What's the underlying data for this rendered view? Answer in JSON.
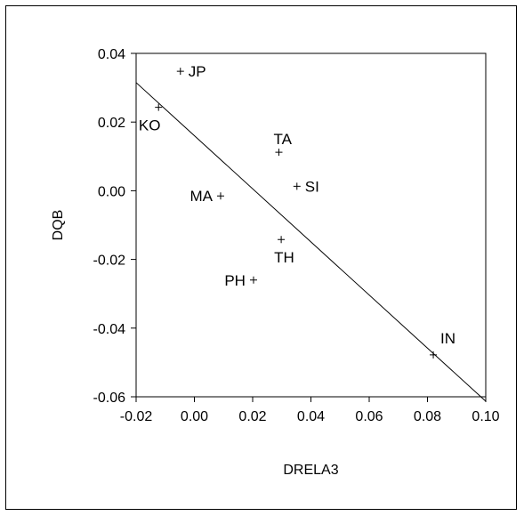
{
  "chart_data": {
    "type": "scatter",
    "title": "",
    "xlabel": "DRELA3",
    "ylabel": "DQB",
    "xlim": [
      -0.02,
      0.1
    ],
    "ylim": [
      -0.06,
      0.04
    ],
    "xticks": [
      -0.02,
      0.0,
      0.02,
      0.04,
      0.06,
      0.08,
      0.1
    ],
    "xtick_labels": [
      "-0.02",
      "0.00",
      "0.02",
      "0.04",
      "0.06",
      "0.08",
      "0.10"
    ],
    "yticks": [
      -0.06,
      -0.04,
      -0.02,
      0.0,
      0.02,
      0.04
    ],
    "ytick_labels": [
      "-0.06",
      "-0.04",
      "-0.02",
      "0.00",
      "0.02",
      "0.04"
    ],
    "grid": false,
    "marker": "+",
    "points": [
      {
        "label": "JP",
        "x": -0.0048,
        "y": 0.0348,
        "label_pos": "right"
      },
      {
        "label": "KO",
        "x": -0.0123,
        "y": 0.0243,
        "label_pos": "below"
      },
      {
        "label": "TA",
        "x": 0.029,
        "y": 0.0112,
        "label_pos": "above"
      },
      {
        "label": "SI",
        "x": 0.0352,
        "y": 0.0013,
        "label_pos": "right"
      },
      {
        "label": "MA",
        "x": 0.009,
        "y": -0.0015,
        "label_pos": "left"
      },
      {
        "label": "TH",
        "x": 0.0298,
        "y": -0.0142,
        "label_pos": "below"
      },
      {
        "label": "PH",
        "x": 0.0203,
        "y": -0.026,
        "label_pos": "left"
      },
      {
        "label": "IN",
        "x": 0.082,
        "y": -0.0478,
        "label_pos": "above-right"
      }
    ],
    "fit_line": {
      "x": [
        -0.02,
        0.1
      ],
      "y": [
        0.0315,
        -0.0613
      ]
    }
  }
}
